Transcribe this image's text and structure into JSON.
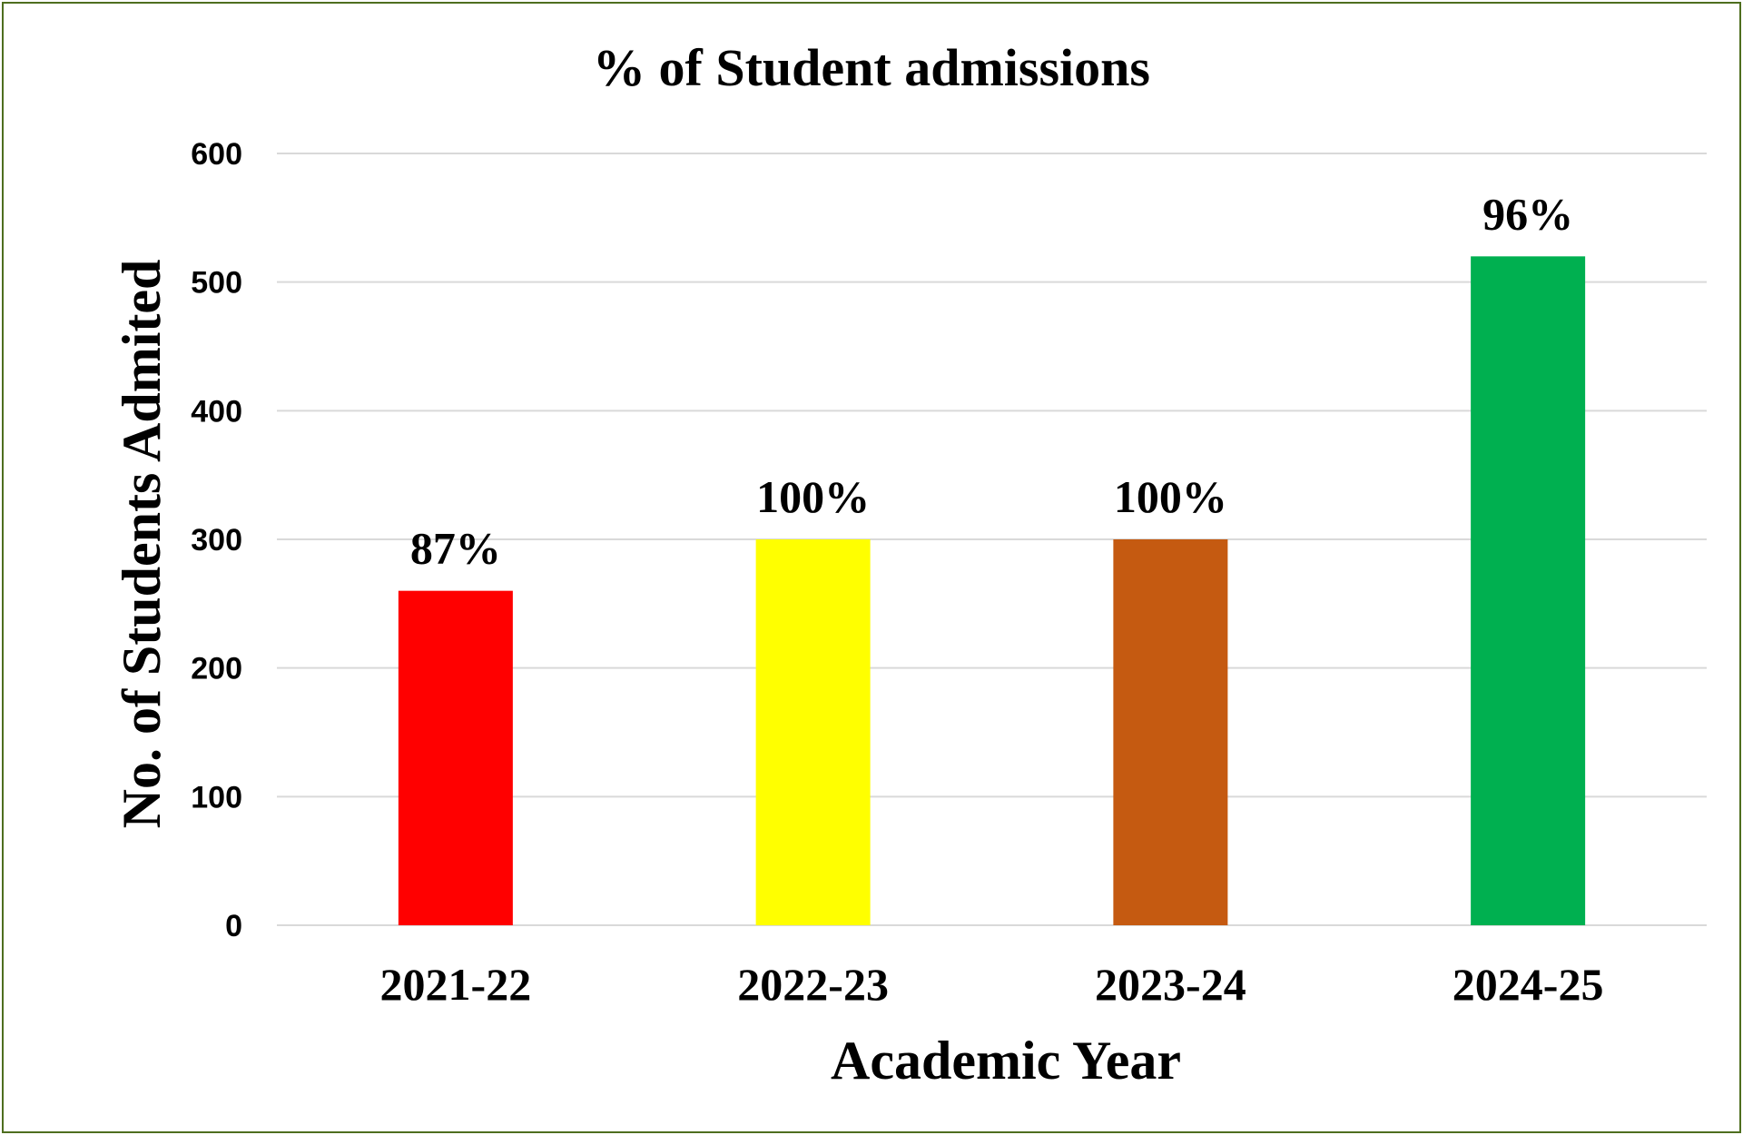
{
  "chart_data": {
    "type": "bar",
    "title": "% of Student admissions",
    "xlabel": "Academic Year",
    "ylabel": "No. of  Students Admited",
    "categories": [
      "2021-22",
      "2022-23",
      "2023-24",
      "2024-25"
    ],
    "values": [
      260,
      300,
      300,
      520
    ],
    "data_labels": [
      "87%",
      "100%",
      "100%",
      "96%"
    ],
    "bar_colors": [
      "#ff0000",
      "#ffff00",
      "#c55a11",
      "#00b050"
    ],
    "ylim": [
      0,
      600
    ],
    "yticks": [
      0,
      100,
      200,
      300,
      400,
      500,
      600
    ],
    "grid": true,
    "legend": "none"
  },
  "colors": {
    "frame_border": "#4e6e1f",
    "gridline": "#d9d9d9"
  }
}
